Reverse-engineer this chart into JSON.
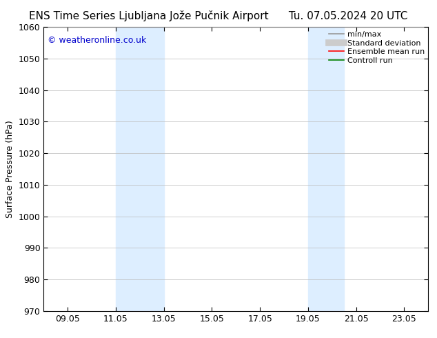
{
  "title_left": "ENS Time Series Ljubljana Jože Pučnik Airport",
  "title_right": "Tu. 07.05.2024 20 UTC",
  "ylabel": "Surface Pressure (hPa)",
  "ylim": [
    970,
    1060
  ],
  "yticks": [
    970,
    980,
    990,
    1000,
    1010,
    1020,
    1030,
    1040,
    1050,
    1060
  ],
  "xtick_labels": [
    "09.05",
    "11.05",
    "13.05",
    "15.05",
    "17.05",
    "19.05",
    "21.05",
    "23.05"
  ],
  "xtick_positions": [
    1,
    3,
    5,
    7,
    9,
    11,
    13,
    15
  ],
  "xlim": [
    0,
    16
  ],
  "shaded_bands": [
    {
      "x_start": 3,
      "x_end": 5
    },
    {
      "x_start": 11,
      "x_end": 12.5
    }
  ],
  "shaded_color": "#ddeeff",
  "background_color": "#ffffff",
  "plot_bg_color": "#ffffff",
  "grid_color": "#bbbbbb",
  "watermark_text": "© weatheronline.co.uk",
  "watermark_color": "#0000cc",
  "legend_entries": [
    {
      "label": "min/max",
      "color": "#999999",
      "lw": 1.2
    },
    {
      "label": "Standard deviation",
      "color": "#cccccc",
      "lw": 7
    },
    {
      "label": "Ensemble mean run",
      "color": "#ff0000",
      "lw": 1.2
    },
    {
      "label": "Controll run",
      "color": "#008000",
      "lw": 1.2
    }
  ],
  "title_fontsize": 11,
  "axis_label_fontsize": 9,
  "tick_fontsize": 9,
  "legend_fontsize": 8
}
